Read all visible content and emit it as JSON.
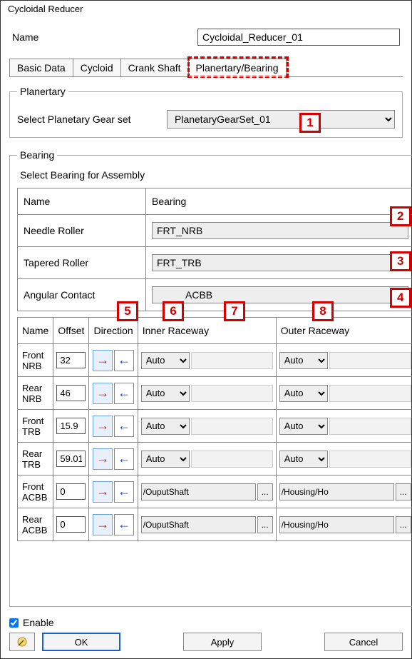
{
  "window": {
    "title": "Cycloidal Reducer"
  },
  "name": {
    "label": "Name",
    "value": "Cycloidal_Reducer_01"
  },
  "tabs": [
    {
      "label": "Basic Data"
    },
    {
      "label": "Cycloid"
    },
    {
      "label": "Crank Shaft"
    },
    {
      "label": "Planertary/Bearing",
      "active": true
    }
  ],
  "planetary": {
    "legend": "Planertary",
    "label": "Select Planetary Gear set",
    "value": "PlanetaryGearSet_01"
  },
  "bearing": {
    "legend": "Bearing",
    "subtitle": "Select Bearing for Assembly",
    "headers": {
      "name": "Name",
      "bearing": "Bearing"
    },
    "rows": [
      {
        "label": "Needle Roller",
        "value": "FRT_NRB"
      },
      {
        "label": "Tapered Roller",
        "value": "FRT_TRB"
      },
      {
        "label": "Angular Contact",
        "value": "ACBB"
      }
    ]
  },
  "assembly": {
    "headers": {
      "name": "Name",
      "offset": "Offset",
      "direction": "Direction",
      "inner": "Inner Raceway",
      "outer": "Outer Raceway"
    },
    "rows": [
      {
        "name": "Front NRB",
        "offset": "32",
        "dir": "right",
        "inner_mode": "Auto",
        "inner_val": "",
        "outer_mode": "Auto",
        "outer_val": ""
      },
      {
        "name": "Rear NRB",
        "offset": "46",
        "dir": "right",
        "inner_mode": "Auto",
        "inner_val": "",
        "outer_mode": "Auto",
        "outer_val": ""
      },
      {
        "name": "Front TRB",
        "offset": "15.9",
        "dir": "right",
        "inner_mode": "Auto",
        "inner_val": "",
        "outer_mode": "Auto",
        "outer_val": ""
      },
      {
        "name": "Rear TRB",
        "offset": "59.01",
        "dir": "right",
        "inner_mode": "Auto",
        "inner_val": "",
        "outer_mode": "Auto",
        "outer_val": ""
      },
      {
        "name": "Front ACBB",
        "offset": "0",
        "dir": "right",
        "inner_mode": "path",
        "inner_val": "/OuputShaft",
        "outer_mode": "path",
        "outer_val": "/Housing/Ho"
      },
      {
        "name": "Rear ACBB",
        "offset": "0",
        "dir": "right",
        "inner_mode": "path",
        "inner_val": "/OuputShaft",
        "outer_mode": "path",
        "outer_val": "/Housing/Ho"
      }
    ]
  },
  "callouts": {
    "1": "1",
    "2": "2",
    "3": "3",
    "4": "4",
    "5": "5",
    "6": "6",
    "7": "7",
    "8": "8"
  },
  "footer": {
    "enable": "Enable",
    "ok": "OK",
    "apply": "Apply",
    "cancel": "Cancel"
  },
  "colors": {
    "callout_border": "#d40000",
    "arrow_right": "#cc2020",
    "arrow_left": "#1a44d0",
    "primary_border": "#1a5fd0"
  }
}
